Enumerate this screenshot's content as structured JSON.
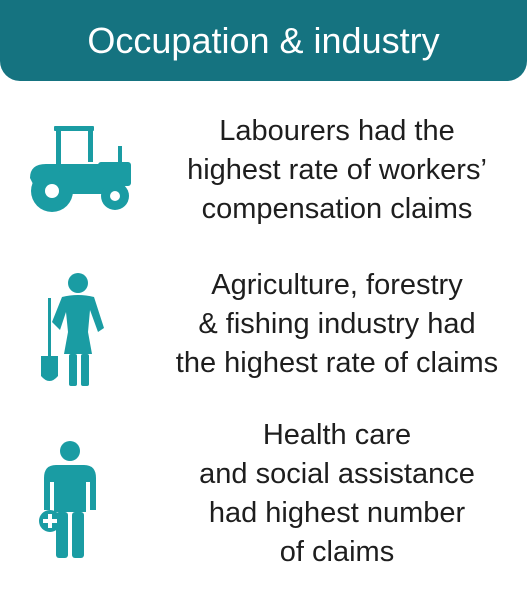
{
  "header": {
    "title": "Occupation & industry"
  },
  "rows": [
    {
      "icon": "tractor-icon",
      "lines": [
        "Labourers had the",
        "highest rate of workers’",
        "compensation claims"
      ]
    },
    {
      "icon": "farmer-with-shovel-icon",
      "lines": [
        "Agriculture, forestry",
        "& fishing industry had",
        "the highest rate of claims"
      ]
    },
    {
      "icon": "health-worker-icon",
      "lines": [
        "Health care",
        "and social assistance",
        "had highest number",
        "of claims"
      ]
    }
  ],
  "colors": {
    "brand_teal": "#157380",
    "icon_teal": "#1a9ca3",
    "text": "#1e1e1e",
    "background": "#ffffff"
  }
}
